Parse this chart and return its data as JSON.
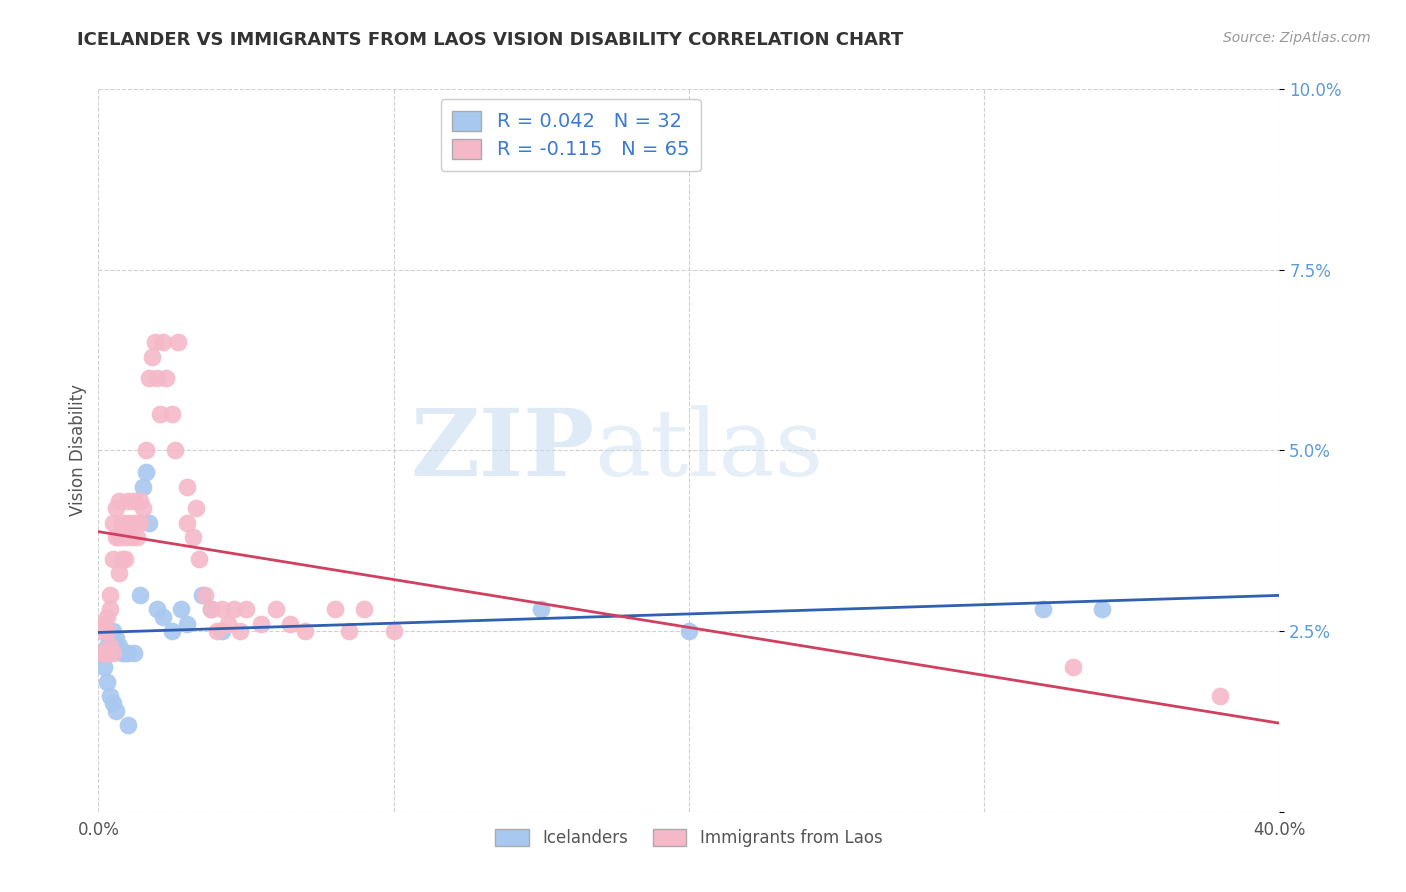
{
  "title": "ICELANDER VS IMMIGRANTS FROM LAOS VISION DISABILITY CORRELATION CHART",
  "source": "Source: ZipAtlas.com",
  "ylabel": "Vision Disability",
  "xlim": [
    0.0,
    0.4
  ],
  "ylim": [
    0.0,
    0.1
  ],
  "xticks": [
    0.0,
    0.1,
    0.2,
    0.3,
    0.4
  ],
  "xtick_labels": [
    "0.0%",
    "",
    "",
    "",
    "40.0%"
  ],
  "yticks": [
    0.0,
    0.025,
    0.05,
    0.075,
    0.1
  ],
  "ytick_labels": [
    "",
    "2.5%",
    "5.0%",
    "7.5%",
    "10.0%"
  ],
  "blue_color": "#a8c8f0",
  "pink_color": "#f5b8c8",
  "blue_line_color": "#3060b0",
  "pink_line_color": "#d04060",
  "legend_blue_R": "R = 0.042",
  "legend_blue_N": "N = 32",
  "legend_pink_R": "R = -0.115",
  "legend_pink_N": "N = 65",
  "watermark_zip": "ZIP",
  "watermark_atlas": "atlas",
  "background_color": "#ffffff",
  "grid_color": "#d0d0d0",
  "blue_x": [
    0.001,
    0.002,
    0.003,
    0.003,
    0.004,
    0.004,
    0.005,
    0.005,
    0.006,
    0.006,
    0.007,
    0.008,
    0.009,
    0.01,
    0.01,
    0.012,
    0.014,
    0.015,
    0.016,
    0.017,
    0.02,
    0.022,
    0.025,
    0.028,
    0.03,
    0.035,
    0.038,
    0.042,
    0.15,
    0.2,
    0.32,
    0.34
  ],
  "blue_y": [
    0.022,
    0.02,
    0.023,
    0.018,
    0.024,
    0.016,
    0.025,
    0.015,
    0.024,
    0.014,
    0.023,
    0.022,
    0.022,
    0.022,
    0.012,
    0.022,
    0.03,
    0.045,
    0.047,
    0.04,
    0.028,
    0.027,
    0.025,
    0.028,
    0.026,
    0.03,
    0.028,
    0.025,
    0.028,
    0.025,
    0.028,
    0.028
  ],
  "pink_x": [
    0.001,
    0.001,
    0.002,
    0.002,
    0.003,
    0.003,
    0.003,
    0.004,
    0.004,
    0.004,
    0.005,
    0.005,
    0.005,
    0.006,
    0.006,
    0.007,
    0.007,
    0.007,
    0.008,
    0.008,
    0.009,
    0.009,
    0.01,
    0.01,
    0.011,
    0.012,
    0.012,
    0.013,
    0.014,
    0.014,
    0.015,
    0.016,
    0.017,
    0.018,
    0.019,
    0.02,
    0.021,
    0.022,
    0.023,
    0.025,
    0.026,
    0.027,
    0.03,
    0.03,
    0.032,
    0.033,
    0.034,
    0.036,
    0.038,
    0.04,
    0.042,
    0.044,
    0.046,
    0.048,
    0.05,
    0.055,
    0.06,
    0.065,
    0.07,
    0.08,
    0.085,
    0.09,
    0.1,
    0.33,
    0.38
  ],
  "pink_y": [
    0.025,
    0.022,
    0.026,
    0.022,
    0.027,
    0.025,
    0.022,
    0.03,
    0.028,
    0.023,
    0.04,
    0.035,
    0.022,
    0.042,
    0.038,
    0.043,
    0.038,
    0.033,
    0.04,
    0.035,
    0.038,
    0.035,
    0.043,
    0.04,
    0.038,
    0.043,
    0.04,
    0.038,
    0.043,
    0.04,
    0.042,
    0.05,
    0.06,
    0.063,
    0.065,
    0.06,
    0.055,
    0.065,
    0.06,
    0.055,
    0.05,
    0.065,
    0.045,
    0.04,
    0.038,
    0.042,
    0.035,
    0.03,
    0.028,
    0.025,
    0.028,
    0.026,
    0.028,
    0.025,
    0.028,
    0.026,
    0.028,
    0.026,
    0.025,
    0.028,
    0.025,
    0.028,
    0.025,
    0.02,
    0.016
  ]
}
